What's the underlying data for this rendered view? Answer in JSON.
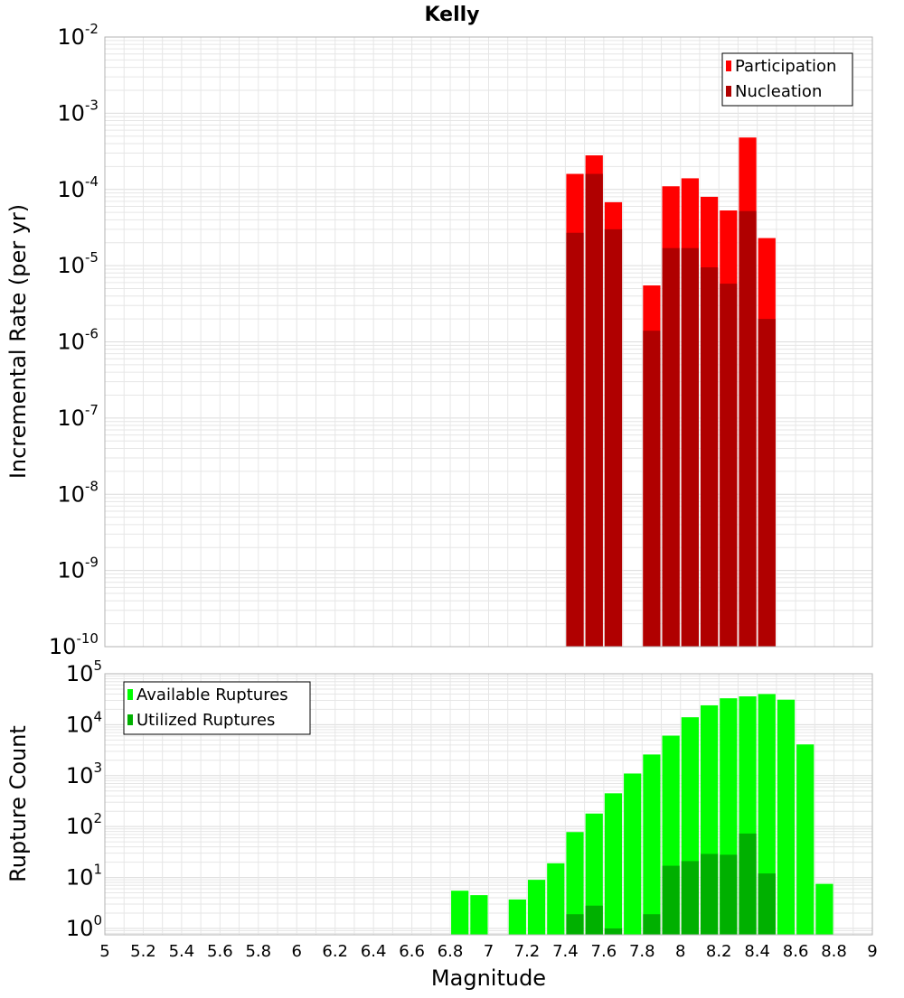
{
  "title": "Kelly",
  "colors": {
    "participation": "#ff0000",
    "nucleation": "#b00000",
    "available": "#00ff00",
    "utilized": "#00b000",
    "grid": "#e6e6e6",
    "plot_border": "#b3b3b3"
  },
  "chart_data": [
    {
      "type": "bar",
      "ylabel": "Incremental Rate (per yr)",
      "yscale": "log",
      "ylim": [
        1e-10,
        0.01
      ],
      "xlim": [
        5,
        9
      ],
      "bar_width": 0.1,
      "legend_position": "top-right",
      "y_tick_labels": [
        {
          "base": "10",
          "exp": "-2"
        },
        {
          "base": "10",
          "exp": "-3"
        },
        {
          "base": "10",
          "exp": "-4"
        },
        {
          "base": "10",
          "exp": "-5"
        },
        {
          "base": "10",
          "exp": "-6"
        },
        {
          "base": "10",
          "exp": "-7"
        },
        {
          "base": "10",
          "exp": "-8"
        },
        {
          "base": "10",
          "exp": "-9"
        },
        {
          "base": "10",
          "exp": "-10"
        }
      ],
      "x": [
        7.45,
        7.55,
        7.65,
        7.85,
        7.95,
        8.05,
        8.15,
        8.25,
        8.35,
        8.45
      ],
      "series": [
        {
          "name": "Participation",
          "values": [
            0.00016,
            0.00028,
            6.8e-05,
            5.5e-06,
            0.00011,
            0.00014,
            8e-05,
            5.3e-05,
            0.00048,
            2.3e-05
          ]
        },
        {
          "name": "Nucleation",
          "values": [
            2.7e-05,
            0.00016,
            3e-05,
            1.4e-06,
            1.7e-05,
            1.7e-05,
            9.5e-06,
            5.8e-06,
            5.2e-05,
            2e-06
          ]
        }
      ]
    },
    {
      "type": "bar",
      "xlabel": "Magnitude",
      "ylabel": "Rupture Count",
      "yscale": "log",
      "ylim": [
        0.75,
        100000
      ],
      "xlim": [
        5,
        9
      ],
      "bar_width": 0.1,
      "legend_position": "top-left",
      "y_tick_labels": [
        {
          "base": "10",
          "exp": "5"
        },
        {
          "base": "10",
          "exp": "4"
        },
        {
          "base": "10",
          "exp": "3"
        },
        {
          "base": "10",
          "exp": "2"
        },
        {
          "base": "10",
          "exp": "1"
        },
        {
          "base": "10",
          "exp": "0"
        }
      ],
      "x_tick_labels": [
        "5",
        "5.2",
        "5.4",
        "5.6",
        "5.8",
        "6",
        "6.2",
        "6.4",
        "6.6",
        "6.8",
        "7",
        "7.2",
        "7.4",
        "7.6",
        "7.8",
        "8",
        "8.2",
        "8.4",
        "8.6",
        "8.8",
        "9"
      ],
      "series": [
        {
          "name": "Available Ruptures",
          "x": [
            6.85,
            6.95,
            7.15,
            7.25,
            7.35,
            7.45,
            7.55,
            7.65,
            7.75,
            7.85,
            7.95,
            8.05,
            8.15,
            8.25,
            8.35,
            8.45,
            8.55,
            8.65,
            8.75
          ],
          "values": [
            5.5,
            4.5,
            3.7,
            9,
            19,
            78,
            180,
            450,
            1100,
            2600,
            6100,
            14000,
            24000,
            33000,
            36000,
            40000,
            31000,
            4100,
            7.5
          ]
        },
        {
          "name": "Utilized Ruptures",
          "x": [
            7.45,
            7.55,
            7.65,
            7.85,
            7.95,
            8.05,
            8.15,
            8.25,
            8.35,
            8.45
          ],
          "values": [
            1.9,
            2.8,
            1.0,
            1.9,
            17,
            21,
            29,
            28,
            73,
            12
          ]
        }
      ]
    }
  ]
}
